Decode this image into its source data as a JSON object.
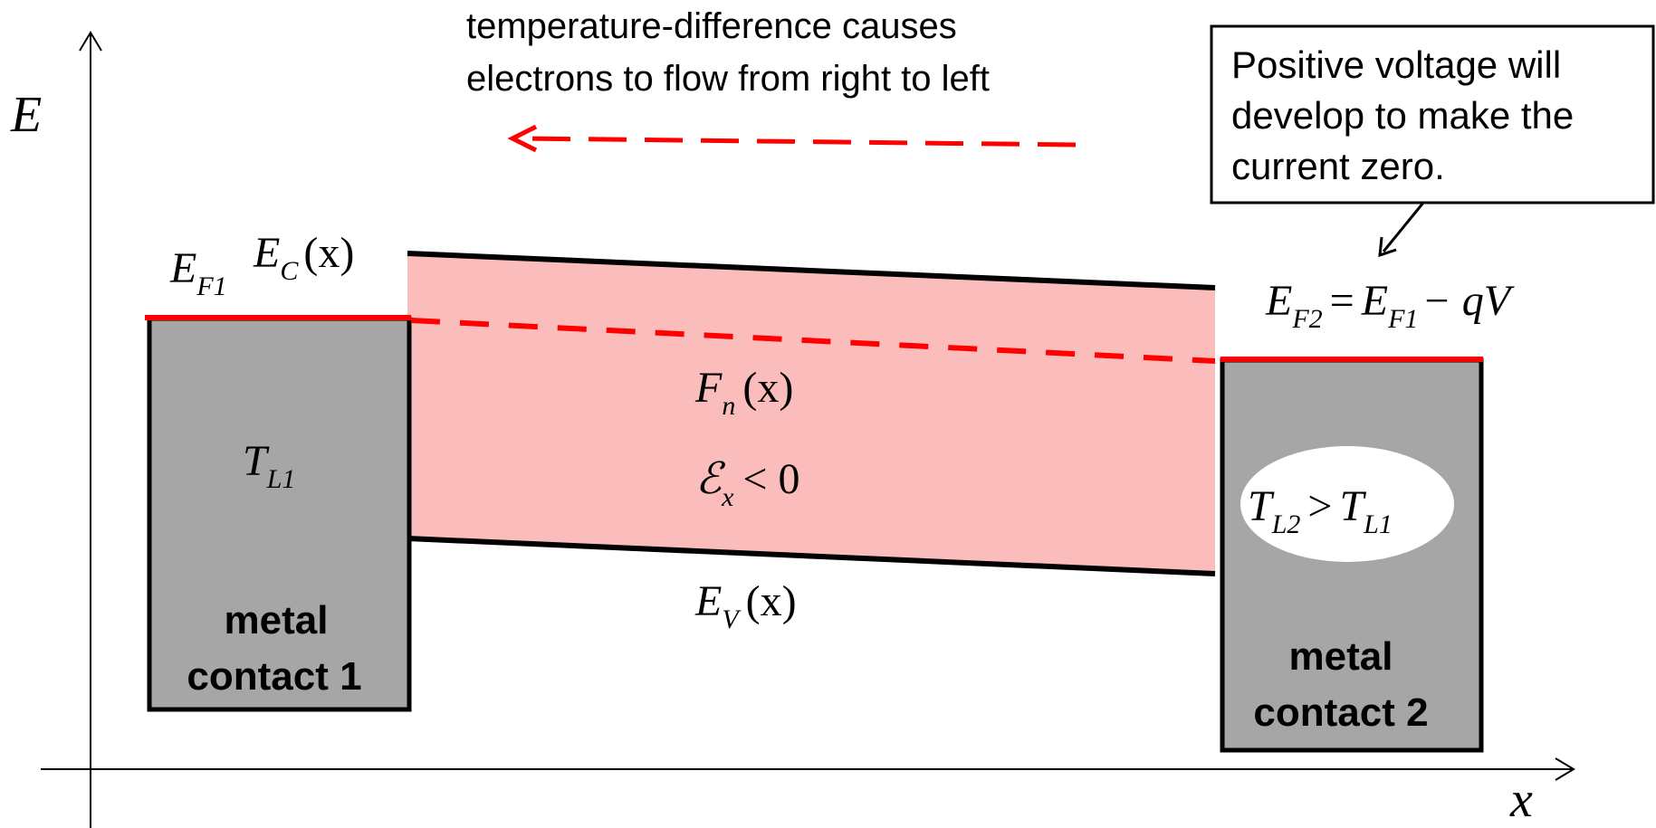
{
  "annotation": {
    "line1": "temperature-difference causes",
    "line2": "electrons to flow from right to left"
  },
  "callout": {
    "line1": "Positive voltage will",
    "line2": "develop to make the",
    "line3": "current zero."
  },
  "axes": {
    "y_label": "E",
    "x_label": "x"
  },
  "labels": {
    "ef1_E": "E",
    "ef1_sub": "F1",
    "ec_E": "E",
    "ec_sub": "C",
    "ec_arg": "(x)",
    "fn_F": "F",
    "fn_sub": "n",
    "fn_arg": "(x)",
    "field_sym": "ℰ",
    "field_sub": "x",
    "field_rel": "< 0",
    "ev_E": "E",
    "ev_sub": "V",
    "ev_arg": "(x)",
    "tl1_T": "T",
    "tl1_sub": "L1",
    "tl2_T1": "T",
    "tl2_sub1": "L2",
    "tl2_rel": ">",
    "tl2_T2": "T",
    "tl2_sub2": "L1",
    "ef2_E1": "E",
    "ef2_sub1": "F2",
    "ef2_eq": "=",
    "ef2_E2": "E",
    "ef2_sub2": "F1",
    "ef2_rest": "− qV"
  },
  "contacts": {
    "left_line1": "metal",
    "left_line2": "contact 1",
    "right_line1": "metal",
    "right_line2": "contact 2"
  },
  "colors": {
    "semiconductor_fill": "#fbbcbc",
    "fermi": "#ff0000",
    "metal_fill": "#a6a6a6",
    "band_line": "#000000"
  }
}
